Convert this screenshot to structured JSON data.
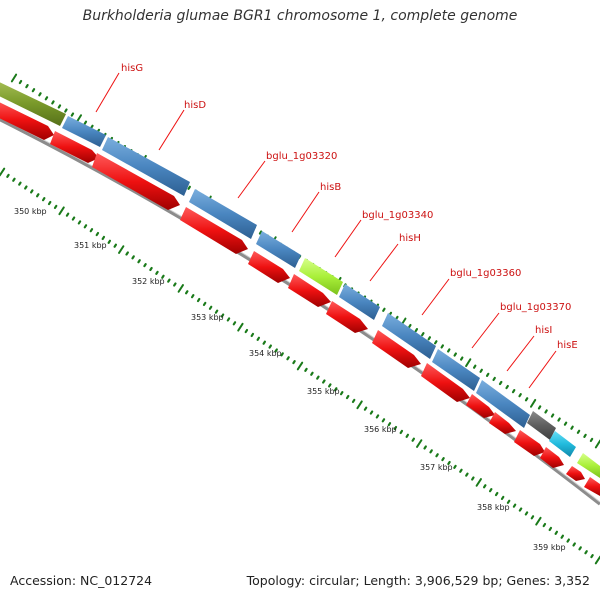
{
  "title": "Burkholderia glumae BGR1 chromosome 1, complete genome",
  "footer": {
    "accession": "Accession: NC_012724",
    "topology": "Topology: circular; Length: 3,906,529 bp; Genes: 3,352"
  },
  "colors": {
    "backbone": "#9a9a9a",
    "tick": "#1a7a1a",
    "gene_blue": "#4a86c0",
    "gene_olive": "#7a9a2a",
    "gene_lime": "#aaf03a",
    "gene_gray": "#5e5e5e",
    "gene_cyan": "#22bbdd",
    "gene_red": "#ee1111",
    "label": "#cc1111"
  },
  "gene_labels": [
    "hisG",
    "hisD",
    "bglu_1g03320",
    "hisB",
    "bglu_1g03340",
    "hisH",
    "bglu_1g03360",
    "bglu_1g03370",
    "hisI",
    "hisE"
  ],
  "kbp_labels": [
    "350 kbp",
    "351 kbp",
    "352 kbp",
    "353 kbp",
    "354 kbp",
    "355 kbp",
    "356 kbp",
    "357 kbp",
    "358 kbp",
    "359 kbp"
  ]
}
